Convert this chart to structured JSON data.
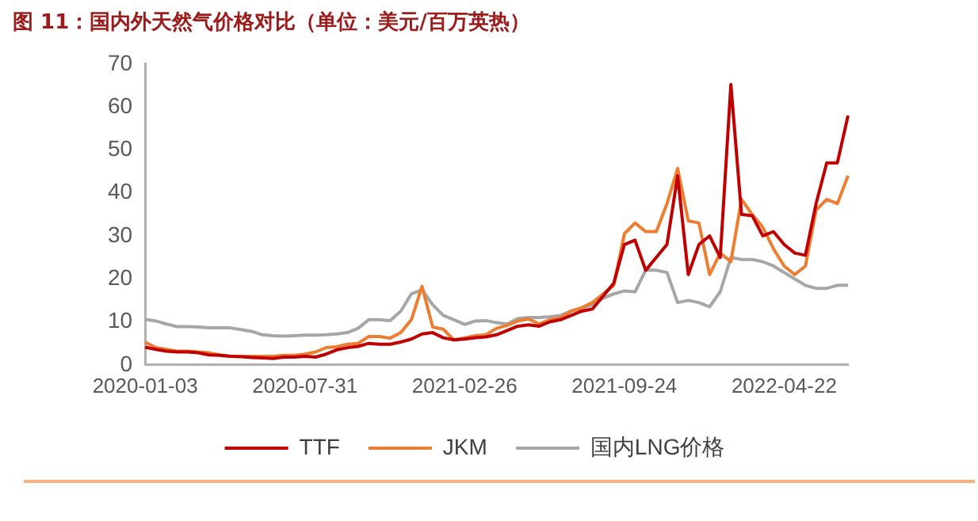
{
  "chart_data": {
    "type": "line",
    "title": "图 11：国内外天然气价格对比（单位：美元/百万英热）",
    "categories": [
      "2020-01-03",
      null,
      null,
      null,
      null,
      null,
      null,
      null,
      null,
      null,
      null,
      null,
      null,
      null,
      null,
      "2020-07-31",
      null,
      null,
      null,
      null,
      null,
      null,
      null,
      null,
      null,
      null,
      null,
      null,
      null,
      null,
      "2021-02-26",
      null,
      null,
      null,
      null,
      null,
      null,
      null,
      null,
      null,
      null,
      null,
      null,
      null,
      null,
      "2021-09-24",
      null,
      null,
      null,
      null,
      null,
      null,
      null,
      null,
      null,
      null,
      null,
      null,
      null,
      null,
      "2022-04-22",
      null,
      null,
      null,
      null,
      null,
      null
    ],
    "series": [
      {
        "name": "TTF",
        "color": "#c00000",
        "values": [
          4.1,
          3.6,
          3.2,
          3.0,
          3.0,
          2.8,
          2.3,
          2.2,
          2.0,
          1.9,
          1.7,
          1.6,
          1.5,
          1.8,
          1.8,
          2.0,
          1.8,
          2.5,
          3.5,
          4.0,
          4.3,
          5.0,
          4.8,
          4.8,
          5.3,
          6.0,
          7.2,
          7.5,
          6.3,
          5.8,
          6.0,
          6.3,
          6.5,
          7.0,
          8.0,
          9.0,
          9.3,
          9.0,
          10.0,
          10.5,
          11.5,
          12.5,
          13.0,
          16.0,
          19.0,
          28.0,
          29.0,
          22.0,
          25.0,
          28.0,
          44.0,
          21.0,
          28.0,
          30.0,
          25.0,
          65.2,
          35.0,
          34.7,
          30.0,
          31.0,
          28.0,
          26.0,
          25.5,
          37.5,
          47.0,
          47.0,
          58.0
        ]
      },
      {
        "name": "JKM",
        "color": "#ed7d31",
        "values": [
          5.3,
          4.0,
          3.6,
          3.2,
          3.2,
          3.0,
          2.8,
          2.3,
          2.0,
          2.0,
          2.0,
          2.0,
          2.0,
          2.2,
          2.2,
          2.5,
          3.0,
          4.0,
          4.2,
          4.8,
          5.0,
          6.6,
          6.6,
          6.2,
          7.5,
          10.5,
          18.3,
          8.8,
          8.3,
          5.8,
          6.3,
          6.8,
          7.0,
          8.5,
          9.2,
          10.2,
          10.7,
          9.5,
          10.5,
          11.0,
          12.5,
          13.3,
          14.5,
          16.5,
          18.5,
          30.5,
          33.0,
          31.0,
          31.0,
          37.5,
          45.7,
          33.5,
          33.0,
          21.0,
          26.0,
          24.0,
          38.5,
          35.0,
          32.0,
          27.0,
          23.0,
          21.0,
          23.0,
          36.0,
          38.5,
          37.5,
          44.0
        ]
      },
      {
        "name": "国内LNG价格",
        "color": "#a6a6a6",
        "values": [
          10.6,
          10.2,
          9.5,
          8.9,
          8.9,
          8.8,
          8.6,
          8.6,
          8.6,
          8.2,
          7.8,
          7.0,
          6.8,
          6.7,
          6.8,
          6.9,
          6.9,
          7.0,
          7.2,
          7.5,
          8.5,
          10.5,
          10.5,
          10.3,
          12.5,
          16.5,
          17.5,
          14.0,
          11.5,
          10.5,
          9.4,
          10.2,
          10.3,
          9.8,
          9.5,
          10.8,
          11.0,
          11.0,
          11.2,
          11.5,
          12.5,
          13.2,
          14.0,
          15.5,
          16.5,
          17.2,
          17.0,
          22.0,
          22.0,
          21.5,
          14.5,
          15.0,
          14.5,
          13.5,
          17.0,
          25.0,
          24.5,
          24.5,
          24.0,
          23.0,
          21.5,
          20.0,
          18.5,
          17.8,
          17.8,
          18.5,
          18.5
        ]
      }
    ],
    "ylim": [
      0,
      70
    ],
    "yticks": [
      0,
      10,
      20,
      30,
      40,
      50,
      60,
      70
    ],
    "grid": false,
    "legend": "bottom",
    "marker": "none",
    "line_style": "solid"
  }
}
